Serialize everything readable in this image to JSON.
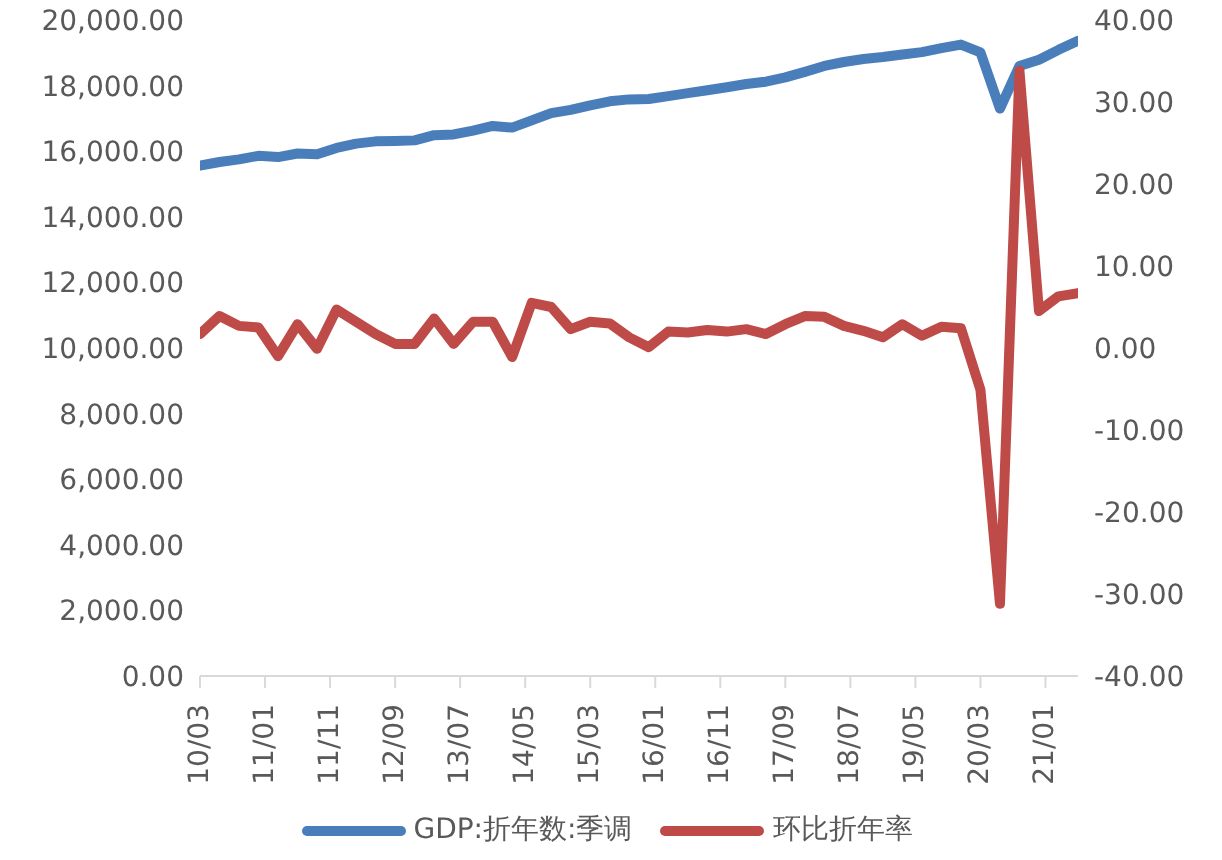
{
  "chart_data": {
    "type": "line",
    "x": [
      "2010-03",
      "2010-06",
      "2010-09",
      "2010-12",
      "2011-03",
      "2011-06",
      "2011-09",
      "2011-12",
      "2012-03",
      "2012-06",
      "2012-09",
      "2012-12",
      "2013-03",
      "2013-06",
      "2013-09",
      "2013-12",
      "2014-03",
      "2014-06",
      "2014-09",
      "2014-12",
      "2015-03",
      "2015-06",
      "2015-09",
      "2015-12",
      "2016-03",
      "2016-06",
      "2016-09",
      "2016-12",
      "2017-03",
      "2017-06",
      "2017-09",
      "2017-12",
      "2018-03",
      "2018-06",
      "2018-09",
      "2018-12",
      "2019-03",
      "2019-06",
      "2019-09",
      "2019-12",
      "2020-03",
      "2020-06",
      "2020-09",
      "2020-12",
      "2021-03",
      "2021-06"
    ],
    "series": [
      {
        "name": "GDP:折年数:季调",
        "color": "#4a7ebb",
        "values": [
          15560,
          15670,
          15750,
          15860,
          15820,
          15930,
          15910,
          16100,
          16230,
          16300,
          16310,
          16330,
          16490,
          16510,
          16630,
          16770,
          16720,
          16940,
          17160,
          17260,
          17400,
          17520,
          17580,
          17590,
          17680,
          17770,
          17860,
          17950,
          18050,
          18120,
          18250,
          18420,
          18600,
          18720,
          18810,
          18870,
          18950,
          19020,
          19140,
          19250,
          19010,
          17300,
          18600,
          18790,
          19090,
          19370
        ]
      },
      {
        "name": "环比折年率",
        "color": "#be4b48",
        "axis": "y2",
        "values": [
          1.7,
          3.9,
          2.7,
          2.5,
          -1.0,
          2.9,
          -0.1,
          4.7,
          3.2,
          1.7,
          0.5,
          0.5,
          3.6,
          0.5,
          3.2,
          3.2,
          -1.1,
          5.5,
          5.0,
          2.3,
          3.2,
          3.0,
          1.3,
          0.1,
          2.0,
          1.9,
          2.2,
          2.0,
          2.3,
          1.7,
          2.9,
          3.9,
          3.8,
          2.7,
          2.1,
          1.3,
          2.9,
          1.5,
          2.6,
          2.4,
          -5.1,
          -31.2,
          33.8,
          4.5,
          6.3,
          6.7
        ]
      }
    ],
    "xlim": [
      "2010-03",
      "2021-06"
    ],
    "xticks": [
      {
        "value": "2010-03",
        "label": "10/03"
      },
      {
        "value": "2011-01",
        "label": "11/01"
      },
      {
        "value": "2011-11",
        "label": "11/11"
      },
      {
        "value": "2012-09",
        "label": "12/09"
      },
      {
        "value": "2013-07",
        "label": "13/07"
      },
      {
        "value": "2014-05",
        "label": "14/05"
      },
      {
        "value": "2015-03",
        "label": "15/03"
      },
      {
        "value": "2016-01",
        "label": "16/01"
      },
      {
        "value": "2016-11",
        "label": "16/11"
      },
      {
        "value": "2017-09",
        "label": "17/09"
      },
      {
        "value": "2018-07",
        "label": "18/07"
      },
      {
        "value": "2019-05",
        "label": "19/05"
      },
      {
        "value": "2020-03",
        "label": "20/03"
      },
      {
        "value": "2021-01",
        "label": "21/01"
      }
    ],
    "ylim": [
      0,
      20000
    ],
    "yticks": [
      {
        "value": 0,
        "label": "0.00"
      },
      {
        "value": 2000,
        "label": "2,000.00"
      },
      {
        "value": 4000,
        "label": "4,000.00"
      },
      {
        "value": 6000,
        "label": "6,000.00"
      },
      {
        "value": 8000,
        "label": "8,000.00"
      },
      {
        "value": 10000,
        "label": "10,000.00"
      },
      {
        "value": 12000,
        "label": "12,000.00"
      },
      {
        "value": 14000,
        "label": "14,000.00"
      },
      {
        "value": 16000,
        "label": "16,000.00"
      },
      {
        "value": 18000,
        "label": "18,000.00"
      },
      {
        "value": 20000,
        "label": "20,000.00"
      }
    ],
    "y2lim": [
      -40,
      40
    ],
    "y2ticks": [
      {
        "value": -40,
        "label": "-40.00"
      },
      {
        "value": -30,
        "label": "-30.00"
      },
      {
        "value": -20,
        "label": "-20.00"
      },
      {
        "value": -10,
        "label": "-10.00"
      },
      {
        "value": 0,
        "label": "0.00"
      },
      {
        "value": 10,
        "label": "10.00"
      },
      {
        "value": 20,
        "label": "20.00"
      },
      {
        "value": 30,
        "label": "30.00"
      },
      {
        "value": 40,
        "label": "40.00"
      }
    ],
    "grid": false,
    "legend": "bottom",
    "marker": "none",
    "line_style": "solid"
  }
}
